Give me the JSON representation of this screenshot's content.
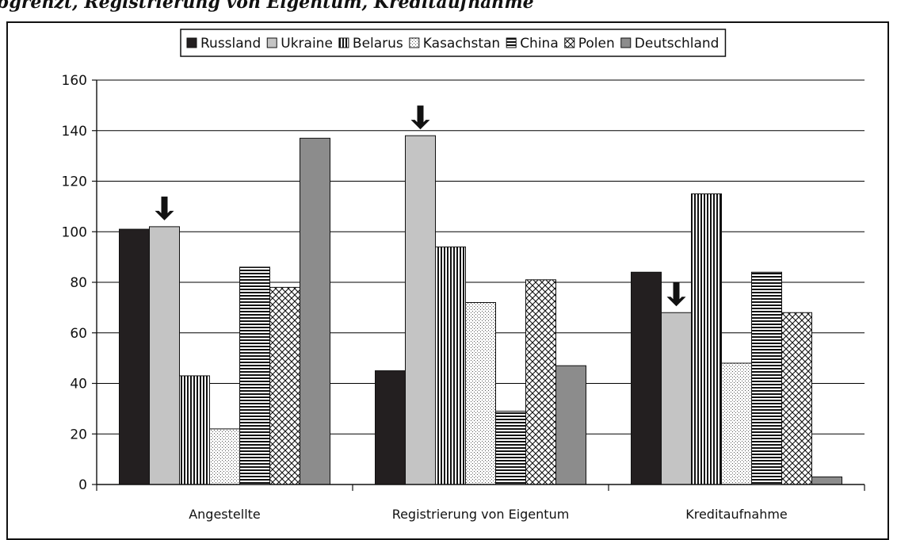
{
  "header": {
    "cut_title": "bgrenzt, Registrierung von Eigentum, Kreditaufnahme"
  },
  "colors": {
    "Russland": "#231f20",
    "Ukraine": "#c4c4c4",
    "Deutschland": "#8c8c8c",
    "grid": "#000000",
    "pattern_ink": "#111111"
  },
  "legend_patterns": {
    "Russland": "solid-black",
    "Ukraine": "solid-light-gray",
    "Belarus": "vertical-lines",
    "Kasachstan": "dots",
    "China": "horizontal-lines",
    "Polen": "diagonal-crosshatch",
    "Deutschland": "solid-gray"
  },
  "arrows": {
    "icon": "down-arrow-icon",
    "markers": [
      {
        "category": "Angestellte",
        "series": "Ukraine",
        "value": 102
      },
      {
        "category": "Registrierung von Eigentum",
        "series": "Ukraine",
        "value": 138
      },
      {
        "category": "Kreditaufnahme",
        "series": "Ukraine",
        "value": 68
      }
    ]
  },
  "chart_data": {
    "type": "bar",
    "categories": [
      "Angestellte",
      "Registrierung von Eigentum",
      "Kreditaufnahme"
    ],
    "series": [
      {
        "name": "Russland",
        "values": [
          101,
          45,
          84
        ]
      },
      {
        "name": "Ukraine",
        "values": [
          102,
          138,
          68
        ]
      },
      {
        "name": "Belarus",
        "values": [
          43,
          94,
          115
        ]
      },
      {
        "name": "Kasachstan",
        "values": [
          22,
          72,
          48
        ]
      },
      {
        "name": "China",
        "values": [
          86,
          29,
          84
        ]
      },
      {
        "name": "Polen",
        "values": [
          78,
          81,
          68
        ]
      },
      {
        "name": "Deutschland",
        "values": [
          137,
          47,
          3
        ]
      }
    ],
    "ylim": [
      0,
      160
    ],
    "yticks": [
      "0",
      "20",
      "40",
      "60",
      "80",
      "100",
      "120",
      "140",
      "160"
    ],
    "grid": true,
    "legend_position": "top"
  }
}
